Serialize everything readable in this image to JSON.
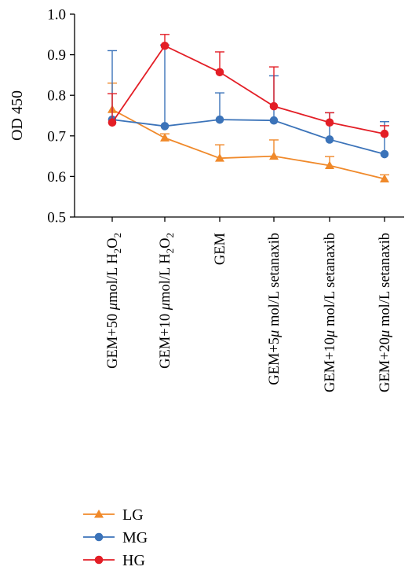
{
  "chart_data": {
    "type": "line",
    "ylabel": "OD 450",
    "ylim": [
      0.5,
      1.0
    ],
    "yticks": [
      "0.5",
      "0.6",
      "0.7",
      "0.8",
      "0.9",
      "1.0"
    ],
    "categories": [
      {
        "pre": "GEM+50 ",
        "mu": "μ",
        "post": "mol/L H",
        "sub1": "2",
        "mid": "O",
        "sub2": "2"
      },
      {
        "pre": "GEM+10 ",
        "mu": "μ",
        "post": "mol/L H",
        "sub1": "2",
        "mid": "O",
        "sub2": "2"
      },
      {
        "pre": "GEM",
        "mu": "",
        "post": "",
        "sub1": "",
        "mid": "",
        "sub2": ""
      },
      {
        "pre": "GEM+5",
        "mu": "μ",
        "post": " mol/L setanaxib",
        "sub1": "",
        "mid": "",
        "sub2": ""
      },
      {
        "pre": "GEM+10",
        "mu": "μ",
        "post": " mol/L setanaxib",
        "sub1": "",
        "mid": "",
        "sub2": ""
      },
      {
        "pre": "GEM+20",
        "mu": "μ",
        "post": " mol/L setanaxib",
        "sub1": "",
        "mid": "",
        "sub2": ""
      }
    ],
    "series": [
      {
        "name": "LG",
        "color": "#f0892a",
        "marker": "triangle",
        "values": [
          0.765,
          0.695,
          0.645,
          0.65,
          0.627,
          0.594
        ],
        "errors": [
          0.065,
          0.01,
          0.033,
          0.04,
          0.022,
          0.01
        ]
      },
      {
        "name": "MG",
        "color": "#3b73b9",
        "marker": "circle",
        "values": [
          0.74,
          0.724,
          0.74,
          0.738,
          0.691,
          0.655
        ],
        "errors": [
          0.17,
          0.2,
          0.066,
          0.11,
          0.066,
          0.08
        ]
      },
      {
        "name": "HG",
        "color": "#e31e26",
        "marker": "circle",
        "values": [
          0.733,
          0.922,
          0.857,
          0.773,
          0.733,
          0.705
        ],
        "errors": [
          0.071,
          0.028,
          0.05,
          0.097,
          0.024,
          0.02
        ]
      }
    ],
    "legend_position": "bottom-left"
  }
}
